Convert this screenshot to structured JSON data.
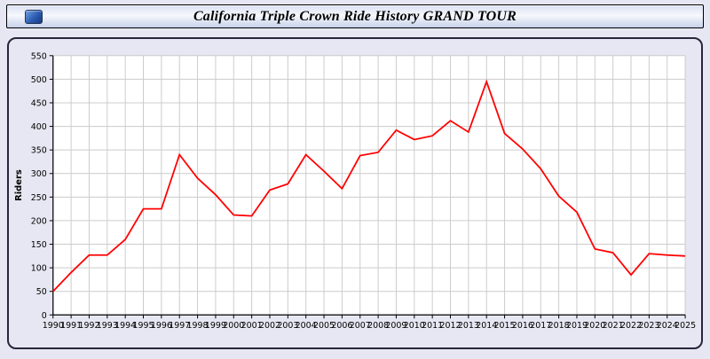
{
  "header": {
    "title": "California Triple Crown Ride History GRAND TOUR",
    "icon": "triple-crown-logo-icon"
  },
  "chart_data": {
    "type": "line",
    "title": "California Triple Crown Ride History GRAND TOUR",
    "xlabel": "",
    "ylabel": "Riders",
    "ylim": [
      0,
      550
    ],
    "y_ticks": [
      0,
      50,
      100,
      150,
      200,
      250,
      300,
      350,
      400,
      450,
      500,
      550
    ],
    "grid": true,
    "legend": "none",
    "line_color": "#ff0000",
    "plot_background": "#ffffff",
    "grid_color": "#cccccc",
    "categories": [
      "1990",
      "1991",
      "1992",
      "1993",
      "1994",
      "1995",
      "1996",
      "1997",
      "1998",
      "1999",
      "2000",
      "2001",
      "2002",
      "2003",
      "2004",
      "2005",
      "2006",
      "2007",
      "2008",
      "2009",
      "2010",
      "2011",
      "2012",
      "2013",
      "2014",
      "2015",
      "2016",
      "2017",
      "2018",
      "2019",
      "2020",
      "2021",
      "2022",
      "2023",
      "2024",
      "2025"
    ],
    "values": [
      50,
      90,
      127,
      127,
      160,
      225,
      225,
      340,
      290,
      255,
      212,
      210,
      265,
      278,
      340,
      305,
      268,
      338,
      345,
      392,
      372,
      380,
      412,
      388,
      495,
      385,
      352,
      310,
      252,
      218,
      140,
      132,
      85,
      130,
      127,
      125
    ]
  }
}
